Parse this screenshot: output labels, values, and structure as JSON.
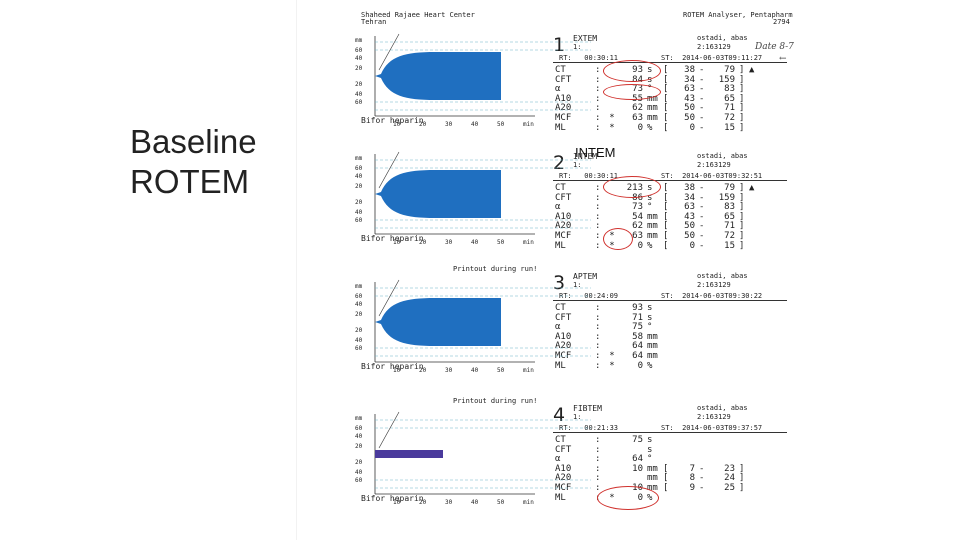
{
  "slide": {
    "title_line1": "Baseline",
    "title_line2": "ROTEM"
  },
  "overlay_label": "INTEM",
  "header": {
    "center_line1": "Shaheed Rajaee Heart Center",
    "center_line2": "Tehran",
    "analyser": "ROTEM Analyser, Pentapharm",
    "code": "2794"
  },
  "handwriting": {
    "note1": "Date 8-7",
    "note2": "←"
  },
  "runs": [
    {
      "num": "1",
      "test": "EXTEM",
      "patient": "ostadi, abas",
      "id_left": "1:",
      "id_right": "2:163129",
      "rt": "RT:   00:30:11",
      "st": "ST:  2014-06-03T09:11:27",
      "caption": "Bifor heparin",
      "printout": "",
      "params": [
        {
          "n": "CT",
          "s": "",
          "v": "93",
          "u": "s",
          "lo": "38",
          "hi": "79",
          "f": "▲"
        },
        {
          "n": "CFT",
          "s": "",
          "v": "84",
          "u": "s",
          "lo": "34",
          "hi": "159",
          "f": ""
        },
        {
          "n": "α",
          "s": "",
          "v": "73",
          "u": "°",
          "lo": "63",
          "hi": "83",
          "f": ""
        },
        {
          "n": "A10",
          "s": "",
          "v": "55",
          "u": "mm",
          "lo": "43",
          "hi": "65",
          "f": ""
        },
        {
          "n": "A20",
          "s": "",
          "v": "62",
          "u": "mm",
          "lo": "50",
          "hi": "71",
          "f": ""
        },
        {
          "n": "MCF",
          "s": "*",
          "v": "63",
          "u": "mm",
          "lo": "50",
          "hi": "72",
          "f": ""
        },
        {
          "n": "ML",
          "s": "*",
          "v": "0",
          "u": "%",
          "lo": "0",
          "hi": "15",
          "f": ""
        }
      ]
    },
    {
      "num": "2",
      "test": "INTEM",
      "patient": "ostadi, abas",
      "id_left": "1:",
      "id_right": "2:163129",
      "rt": "RT:   00:30:11",
      "st": "ST:  2014-06-03T09:32:51",
      "caption": "Bifor heparin",
      "printout": "",
      "params": [
        {
          "n": "CT",
          "s": "",
          "v": "213",
          "u": "s",
          "lo": "38",
          "hi": "79",
          "f": "▲"
        },
        {
          "n": "CFT",
          "s": "",
          "v": "86",
          "u": "s",
          "lo": "34",
          "hi": "159",
          "f": ""
        },
        {
          "n": "α",
          "s": "",
          "v": "73",
          "u": "°",
          "lo": "63",
          "hi": "83",
          "f": ""
        },
        {
          "n": "A10",
          "s": "",
          "v": "54",
          "u": "mm",
          "lo": "43",
          "hi": "65",
          "f": ""
        },
        {
          "n": "A20",
          "s": "",
          "v": "62",
          "u": "mm",
          "lo": "50",
          "hi": "71",
          "f": ""
        },
        {
          "n": "MCF",
          "s": "*",
          "v": "63",
          "u": "mm",
          "lo": "50",
          "hi": "72",
          "f": ""
        },
        {
          "n": "ML",
          "s": "*",
          "v": "0",
          "u": "%",
          "lo": "0",
          "hi": "15",
          "f": ""
        }
      ]
    },
    {
      "num": "3",
      "test": "APTEM",
      "patient": "ostadi, abas",
      "id_left": "1:",
      "id_right": "2:163129",
      "rt": "RT:   00:24:09",
      "st": "ST:  2014-06-03T09:30:22",
      "caption": "Bifor heparin",
      "printout": "Printout during run!",
      "params": [
        {
          "n": "CT",
          "s": "",
          "v": "93",
          "u": "s",
          "lo": "",
          "hi": "",
          "f": ""
        },
        {
          "n": "CFT",
          "s": "",
          "v": "71",
          "u": "s",
          "lo": "",
          "hi": "",
          "f": ""
        },
        {
          "n": "α",
          "s": "",
          "v": "75",
          "u": "°",
          "lo": "",
          "hi": "",
          "f": ""
        },
        {
          "n": "A10",
          "s": "",
          "v": "58",
          "u": "mm",
          "lo": "",
          "hi": "",
          "f": ""
        },
        {
          "n": "A20",
          "s": "",
          "v": "64",
          "u": "mm",
          "lo": "",
          "hi": "",
          "f": ""
        },
        {
          "n": "MCF",
          "s": "*",
          "v": "64",
          "u": "mm",
          "lo": "",
          "hi": "",
          "f": ""
        },
        {
          "n": "ML",
          "s": "*",
          "v": "0",
          "u": "%",
          "lo": "",
          "hi": "",
          "f": ""
        }
      ]
    },
    {
      "num": "4",
      "test": "FIBTEM",
      "patient": "ostadi, abas",
      "id_left": "1:",
      "id_right": "2:163129",
      "rt": "RT:   00:21:33",
      "st": "ST:  2014-06-03T09:37:57",
      "caption": "Bifor heparin",
      "printout": "Printout during run!",
      "params": [
        {
          "n": "CT",
          "s": "",
          "v": "75",
          "u": "s",
          "lo": "",
          "hi": "",
          "f": ""
        },
        {
          "n": "CFT",
          "s": "",
          "v": "",
          "u": "s",
          "lo": "",
          "hi": "",
          "f": ""
        },
        {
          "n": "α",
          "s": "",
          "v": "64",
          "u": "°",
          "lo": "",
          "hi": "",
          "f": ""
        },
        {
          "n": "A10",
          "s": "",
          "v": "10",
          "u": "mm",
          "lo": "7",
          "hi": "23",
          "f": ""
        },
        {
          "n": "A20",
          "s": "",
          "v": "",
          "u": "mm",
          "lo": "8",
          "hi": "24",
          "f": ""
        },
        {
          "n": "MCF",
          "s": "",
          "v": "10",
          "u": "mm",
          "lo": "9",
          "hi": "25",
          "f": ""
        },
        {
          "n": "ML",
          "s": "*",
          "v": "0",
          "u": "%",
          "lo": "",
          "hi": "",
          "f": ""
        }
      ]
    }
  ],
  "axis": {
    "y_ticks": [
      "mm",
      "60",
      "40",
      "20",
      "20",
      "40",
      "60"
    ],
    "x_ticks": [
      "10",
      "20",
      "30",
      "40",
      "50",
      "min"
    ]
  },
  "colors": {
    "trace": "#1f6fc0",
    "fibtem_trace": "#4a3a9c",
    "circle": "#d0312d",
    "dashed": "#6ab3c8"
  }
}
